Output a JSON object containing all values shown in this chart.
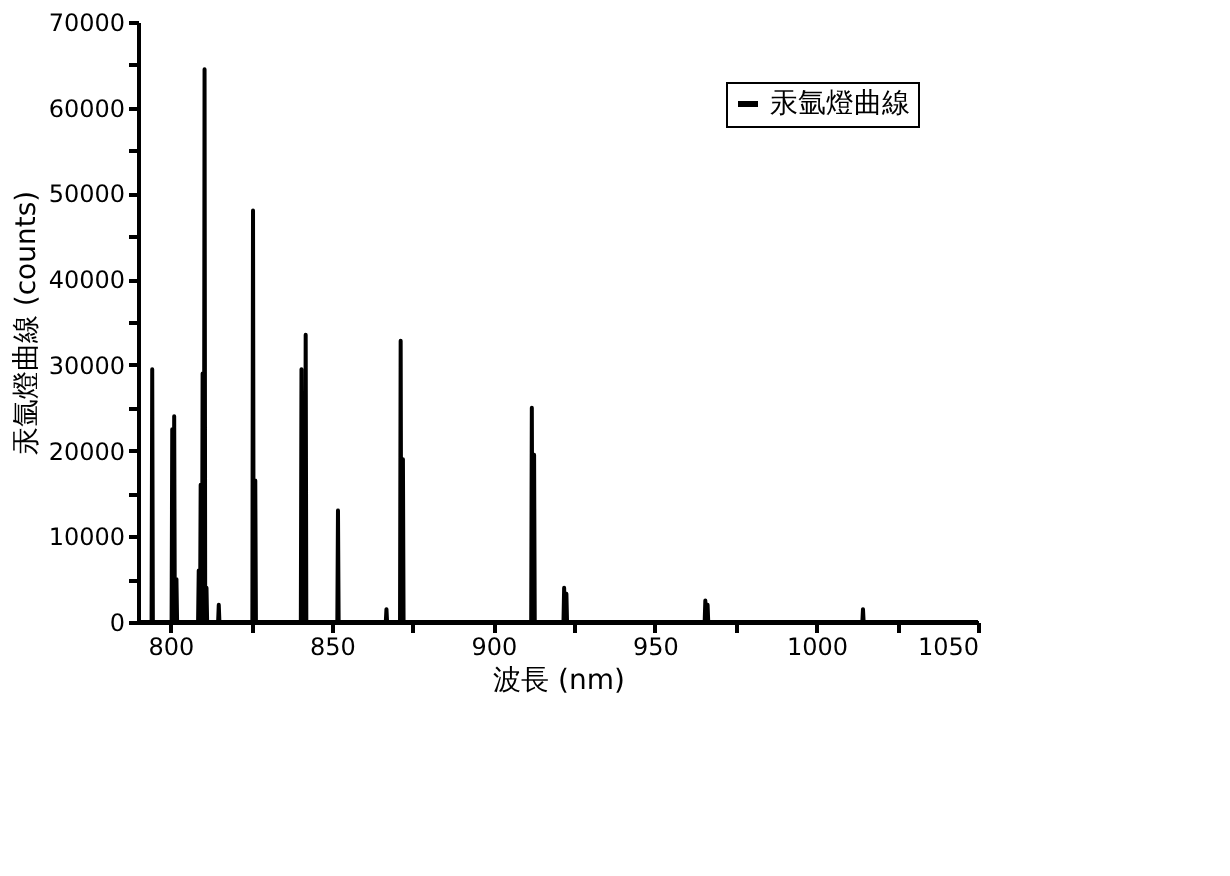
{
  "chart_data": {
    "type": "line",
    "xlabel": "波長 (nm)",
    "ylabel": "汞氩燈曲線 (counts)",
    "xlim": [
      790,
      1050
    ],
    "ylim": [
      0,
      70000
    ],
    "xticks": [
      800,
      {
        "value": 825,
        "label": null
      },
      850,
      {
        "value": 875,
        "label": null
      },
      900,
      {
        "value": 925,
        "label": null
      },
      950,
      {
        "value": 975,
        "label": null
      },
      1000,
      {
        "value": 1025,
        "label": null
      },
      1050
    ],
    "yticks": [
      0,
      {
        "value": 5000,
        "label": null
      },
      10000,
      {
        "value": 15000,
        "label": null
      },
      20000,
      {
        "value": 25000,
        "label": null
      },
      30000,
      {
        "value": 35000,
        "label": null
      },
      40000,
      {
        "value": 45000,
        "label": null
      },
      50000,
      {
        "value": 55000,
        "label": null
      },
      60000,
      {
        "value": 65000,
        "label": null
      },
      70000
    ],
    "grid": false,
    "legend": "top right",
    "marker": "none",
    "line_style": "solid",
    "series": [
      {
        "name": "汞氩燈曲線",
        "color": "#000000",
        "x": [
          790,
          794.2,
          794.4,
          794.6,
          800.4,
          800.6,
          800.8,
          801.0,
          801.2,
          801.4,
          801.7,
          801.9,
          802.1,
          808.6,
          808.8,
          809.0,
          809.2,
          809.4,
          809.6,
          809.8,
          810.0,
          810.2,
          810.4,
          810.6,
          810.8,
          811.0,
          811.2,
          811.4,
          814.8,
          815.0,
          815.2,
          825.4,
          825.6,
          825.8,
          826.1,
          826.3,
          826.5,
          840.4,
          840.6,
          840.8,
          841.1,
          841.3,
          841.5,
          841.7,
          841.9,
          842.1,
          851.7,
          851.9,
          852.1,
          866.7,
          866.9,
          867.1,
          871.1,
          871.3,
          871.5,
          871.8,
          872.0,
          872.2,
          911.7,
          911.9,
          912.1,
          912.4,
          912.6,
          912.8,
          921.7,
          921.9,
          922.1,
          922.4,
          922.6,
          922.8,
          965.4,
          965.6,
          965.8,
          966.1,
          966.3,
          966.5,
          1014.2,
          1014.4,
          1014.6,
          1050
        ],
        "values": [
          0,
          0,
          29500,
          0,
          0,
          22500,
          0,
          0,
          24000,
          0,
          0,
          5000,
          0,
          0,
          6000,
          0,
          0,
          16000,
          0,
          0,
          29000,
          0,
          0,
          64500,
          0,
          0,
          4000,
          0,
          0,
          2000,
          0,
          0,
          48000,
          0,
          0,
          16500,
          0,
          0,
          29500,
          0,
          0,
          15000,
          0,
          0,
          33500,
          0,
          0,
          13000,
          0,
          0,
          1500,
          0,
          0,
          32800,
          0,
          0,
          19000,
          0,
          0,
          25000,
          0,
          0,
          19500,
          0,
          0,
          4000,
          0,
          0,
          3300,
          0,
          0,
          2500,
          0,
          0,
          2000,
          0,
          0,
          1500,
          0,
          0
        ]
      }
    ]
  }
}
